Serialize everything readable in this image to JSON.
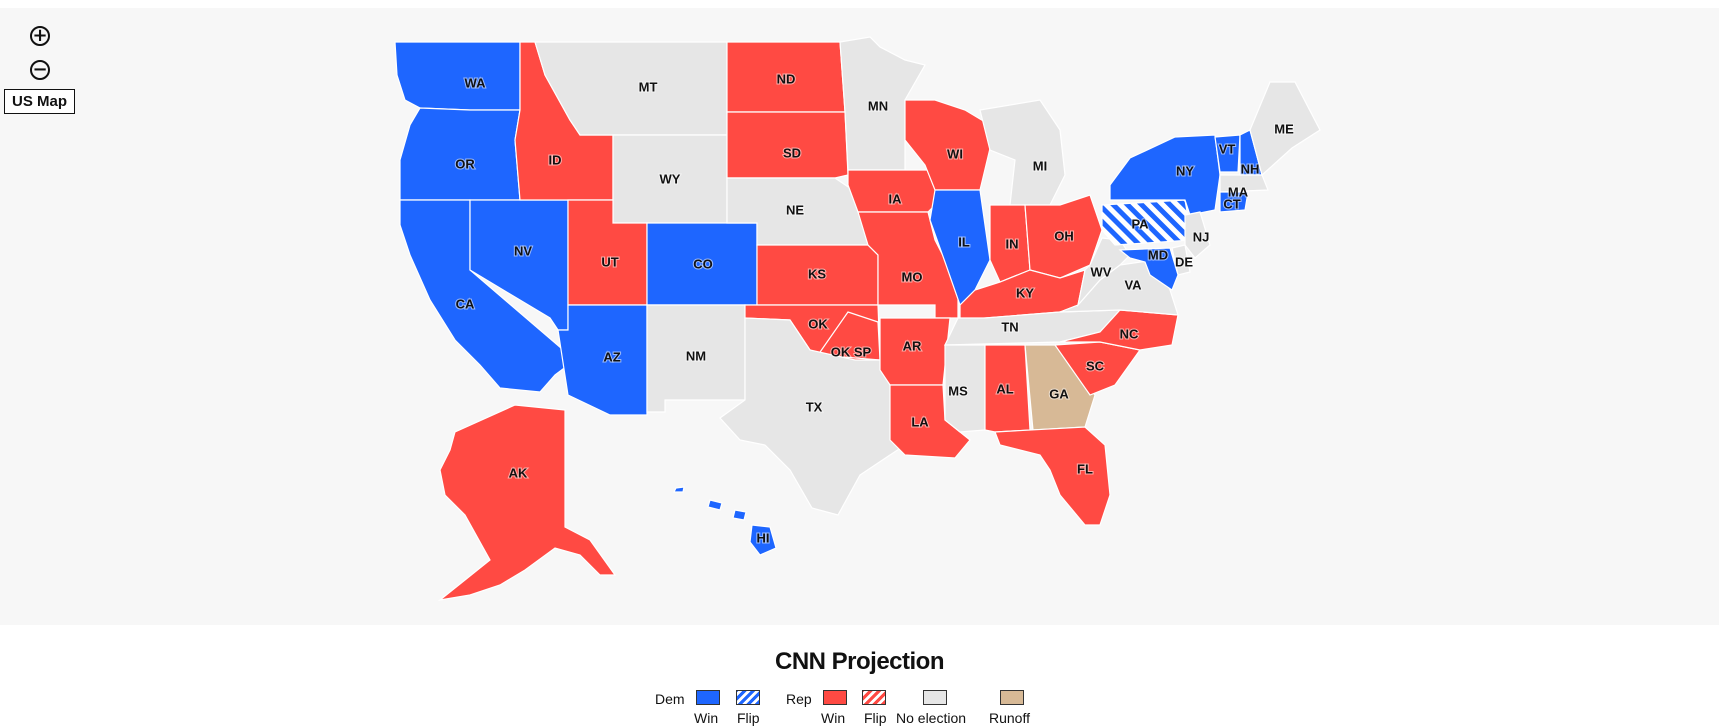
{
  "controls": {
    "zoom_in": "+",
    "zoom_out": "−",
    "us_map_label": "US Map"
  },
  "colors": {
    "dem": "#1e66ff",
    "rep": "#ff4a43",
    "none": "#e6e6e6",
    "runoff": "#d7b996",
    "background": "#f7f7f7"
  },
  "states": [
    {
      "abbr": "WA",
      "status": "dem_win"
    },
    {
      "abbr": "OR",
      "status": "dem_win"
    },
    {
      "abbr": "CA",
      "status": "dem_win"
    },
    {
      "abbr": "NV",
      "status": "dem_win"
    },
    {
      "abbr": "ID",
      "status": "rep_win"
    },
    {
      "abbr": "MT",
      "status": "no_election"
    },
    {
      "abbr": "WY",
      "status": "no_election"
    },
    {
      "abbr": "UT",
      "status": "rep_win"
    },
    {
      "abbr": "AZ",
      "status": "dem_win"
    },
    {
      "abbr": "CO",
      "status": "dem_win"
    },
    {
      "abbr": "NM",
      "status": "no_election"
    },
    {
      "abbr": "ND",
      "status": "rep_win"
    },
    {
      "abbr": "SD",
      "status": "rep_win"
    },
    {
      "abbr": "NE",
      "status": "no_election"
    },
    {
      "abbr": "KS",
      "status": "rep_win"
    },
    {
      "abbr": "OK",
      "status": "rep_win"
    },
    {
      "abbr": "OK SP",
      "status": "rep_win"
    },
    {
      "abbr": "TX",
      "status": "no_election"
    },
    {
      "abbr": "MN",
      "status": "no_election"
    },
    {
      "abbr": "IA",
      "status": "rep_win"
    },
    {
      "abbr": "MO",
      "status": "rep_win"
    },
    {
      "abbr": "AR",
      "status": "rep_win"
    },
    {
      "abbr": "LA",
      "status": "rep_win"
    },
    {
      "abbr": "WI",
      "status": "rep_win"
    },
    {
      "abbr": "IL",
      "status": "dem_win"
    },
    {
      "abbr": "MI",
      "status": "no_election"
    },
    {
      "abbr": "IN",
      "status": "rep_win"
    },
    {
      "abbr": "OH",
      "status": "rep_win"
    },
    {
      "abbr": "KY",
      "status": "rep_win"
    },
    {
      "abbr": "TN",
      "status": "no_election"
    },
    {
      "abbr": "MS",
      "status": "no_election"
    },
    {
      "abbr": "AL",
      "status": "rep_win"
    },
    {
      "abbr": "GA",
      "status": "runoff"
    },
    {
      "abbr": "FL",
      "status": "rep_win"
    },
    {
      "abbr": "SC",
      "status": "rep_win"
    },
    {
      "abbr": "NC",
      "status": "rep_win"
    },
    {
      "abbr": "VA",
      "status": "no_election"
    },
    {
      "abbr": "WV",
      "status": "no_election"
    },
    {
      "abbr": "PA",
      "status": "dem_flip"
    },
    {
      "abbr": "NY",
      "status": "dem_win"
    },
    {
      "abbr": "VT",
      "status": "dem_win"
    },
    {
      "abbr": "NH",
      "status": "dem_win"
    },
    {
      "abbr": "ME",
      "status": "no_election"
    },
    {
      "abbr": "MA",
      "status": "no_election"
    },
    {
      "abbr": "NJ",
      "status": "no_election"
    },
    {
      "abbr": "DE",
      "status": "no_election"
    },
    {
      "abbr": "MD",
      "status": "dem_win"
    },
    {
      "abbr": "CT",
      "status": "dem_win"
    },
    {
      "abbr": "AK",
      "status": "rep_win"
    },
    {
      "abbr": "HI",
      "status": "dem_win"
    }
  ],
  "legend": {
    "title": "CNN Projection",
    "dem_label": "Dem",
    "rep_label": "Rep",
    "win_label": "Win",
    "flip_label": "Flip",
    "no_election_label": "No election",
    "runoff_label": "Runoff"
  }
}
